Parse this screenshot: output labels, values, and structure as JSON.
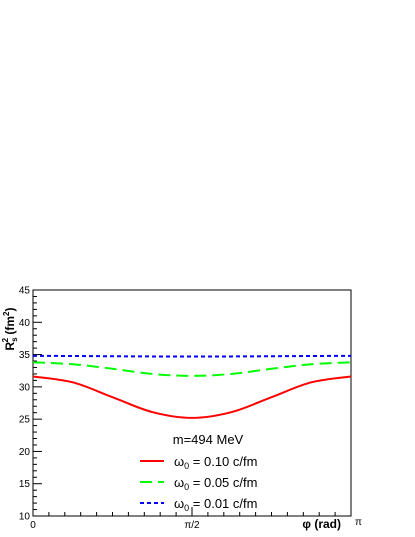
{
  "chart_data": {
    "type": "line",
    "title": "",
    "xlabel": "φ (rad)",
    "ylabel": "R_s^2 (fm^2)",
    "ylabel_parts": {
      "main": "R",
      "sub": "s",
      "sup": "2",
      "unit_open": " (fm",
      "unit_sup": "2",
      "unit_close": ")"
    },
    "xlim": [
      0,
      3.14159
    ],
    "ylim": [
      10,
      45
    ],
    "x_ticks": [
      {
        "value": 0,
        "label": "0"
      },
      {
        "value": 1.5708,
        "label": "π/2"
      },
      {
        "value": 3.14159,
        "label": "π"
      }
    ],
    "y_ticks": [
      {
        "value": 10,
        "label": "10"
      },
      {
        "value": 15,
        "label": "15"
      },
      {
        "value": 20,
        "label": "20"
      },
      {
        "value": 25,
        "label": "25"
      },
      {
        "value": 30,
        "label": "30"
      },
      {
        "value": 35,
        "label": "35"
      },
      {
        "value": 40,
        "label": "40"
      },
      {
        "value": 45,
        "label": "45"
      }
    ],
    "grid": false,
    "legend_position": "bottom-center",
    "legend_header": "m=494 MeV",
    "series": [
      {
        "name": "ω_0 = 0.10 c/fm",
        "name_parts": {
          "sym": "ω",
          "sub": "0",
          "rest": " = 0.10 c/fm"
        },
        "color": "#ff0000",
        "dash": "solid",
        "x": [
          0,
          0.3927,
          0.7854,
          1.1781,
          1.5708,
          1.9635,
          2.3562,
          2.7489,
          3.14159
        ],
        "y": [
          31.6,
          30.7,
          28.4,
          26.1,
          25.2,
          26.1,
          28.4,
          30.7,
          31.6
        ]
      },
      {
        "name": "ω_0 = 0.05 c/fm",
        "name_parts": {
          "sym": "ω",
          "sub": "0",
          "rest": " = 0.05 c/fm"
        },
        "color": "#00ff00",
        "dash": "long-dash",
        "x": [
          0,
          0.3927,
          0.7854,
          1.1781,
          1.5708,
          1.9635,
          2.3562,
          2.7489,
          3.14159
        ],
        "y": [
          33.8,
          33.5,
          32.8,
          32.0,
          31.7,
          32.0,
          32.8,
          33.5,
          33.8
        ]
      },
      {
        "name": "ω_0 = 0.01 c/fm",
        "name_parts": {
          "sym": "ω",
          "sub": "0",
          "rest": " = 0.01 c/fm"
        },
        "color": "#0000ff",
        "dash": "short-dash",
        "x": [
          0,
          0.3927,
          0.7854,
          1.1781,
          1.5708,
          1.9635,
          2.3562,
          2.7489,
          3.14159
        ],
        "y": [
          34.8,
          34.78,
          34.74,
          34.71,
          34.7,
          34.71,
          34.74,
          34.78,
          34.8
        ]
      }
    ]
  }
}
